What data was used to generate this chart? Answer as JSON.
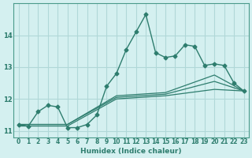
{
  "title": "",
  "xlabel": "Humidex (Indice chaleur)",
  "ylabel": "",
  "bg_color": "#d4f0f0",
  "grid_color": "#b0d8d8",
  "line_color": "#2e7d6e",
  "xlim": [
    -0.5,
    23.5
  ],
  "ylim": [
    10.8,
    15.0
  ],
  "yticks": [
    11,
    12,
    13,
    14
  ],
  "xticks": [
    0,
    1,
    2,
    3,
    4,
    5,
    6,
    7,
    8,
    9,
    10,
    11,
    12,
    13,
    14,
    15,
    16,
    17,
    18,
    19,
    20,
    21,
    22,
    23
  ],
  "series1": {
    "x": [
      0,
      1,
      2,
      3,
      4,
      5,
      6,
      7,
      8,
      9,
      10,
      11,
      12,
      13,
      14,
      15,
      16,
      17,
      18,
      19,
      20,
      21,
      22,
      23
    ],
    "y": [
      11.2,
      11.15,
      11.6,
      11.8,
      11.75,
      11.1,
      11.1,
      11.2,
      11.5,
      12.4,
      12.8,
      13.55,
      14.1,
      14.65,
      13.45,
      13.3,
      13.35,
      13.7,
      13.65,
      13.05,
      13.1,
      13.05,
      12.5,
      12.25
    ]
  },
  "series2": {
    "x": [
      0,
      5,
      10,
      15,
      20,
      23
    ],
    "y": [
      11.15,
      11.15,
      12.0,
      12.1,
      12.3,
      12.25
    ]
  },
  "series3": {
    "x": [
      0,
      5,
      10,
      15,
      20,
      23
    ],
    "y": [
      11.2,
      11.2,
      12.05,
      12.15,
      12.55,
      12.25
    ]
  },
  "series4": {
    "x": [
      0,
      5,
      10,
      15,
      20,
      23
    ],
    "y": [
      11.2,
      11.2,
      12.1,
      12.2,
      12.75,
      12.25
    ]
  }
}
